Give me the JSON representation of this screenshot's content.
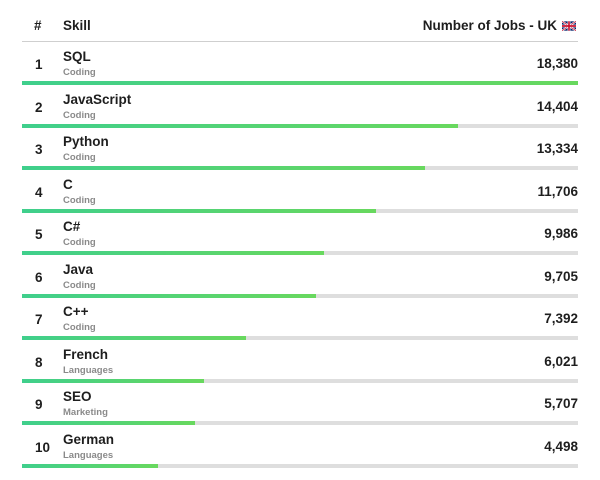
{
  "chart_data": {
    "type": "bar",
    "header": {
      "rank": "#",
      "skill": "Skill",
      "jobs": "Number of Jobs - UK",
      "flag_icon": "uk-flag-icon"
    },
    "max_value": 18380,
    "rows": [
      {
        "rank": "1",
        "skill": "SQL",
        "category": "Coding",
        "value_label": "18,380",
        "value": 18380
      },
      {
        "rank": "2",
        "skill": "JavaScript",
        "category": "Coding",
        "value_label": "14,404",
        "value": 14404
      },
      {
        "rank": "3",
        "skill": "Python",
        "category": "Coding",
        "value_label": "13,334",
        "value": 13334
      },
      {
        "rank": "4",
        "skill": "C",
        "category": "Coding",
        "value_label": "11,706",
        "value": 11706
      },
      {
        "rank": "5",
        "skill": "C#",
        "category": "Coding",
        "value_label": "9,986",
        "value": 9986
      },
      {
        "rank": "6",
        "skill": "Java",
        "category": "Coding",
        "value_label": "9,705",
        "value": 9705
      },
      {
        "rank": "7",
        "skill": "C++",
        "category": "Coding",
        "value_label": "7,392",
        "value": 7392
      },
      {
        "rank": "8",
        "skill": "French",
        "category": "Languages",
        "value_label": "6,021",
        "value": 6021
      },
      {
        "rank": "9",
        "skill": "SEO",
        "category": "Marketing",
        "value_label": "5,707",
        "value": 5707
      },
      {
        "rank": "10",
        "skill": "German",
        "category": "Languages",
        "value_label": "4,498",
        "value": 4498
      }
    ],
    "colors": {
      "bar_start": "#3fcf8c",
      "bar_end": "#68d85e",
      "track": "#dedede",
      "category_text": "#8a8a8a"
    }
  }
}
